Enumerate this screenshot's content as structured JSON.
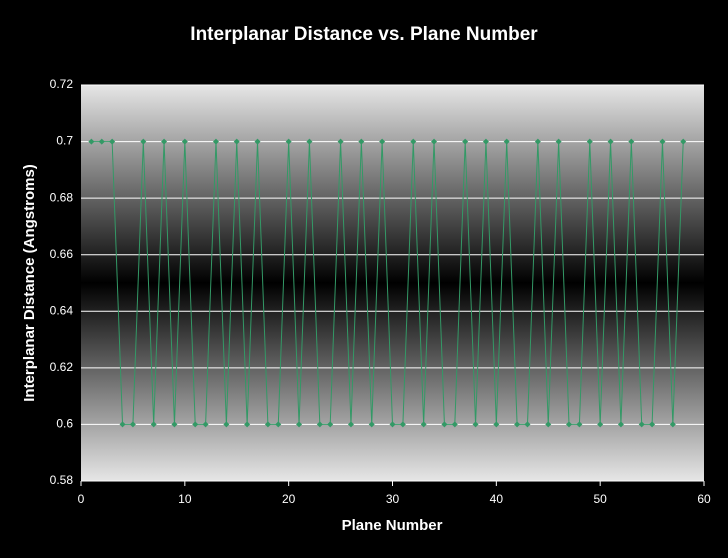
{
  "chart_data": {
    "type": "line",
    "title": "Interplanar Distance vs. Plane Number",
    "x_label": "Plane Number",
    "y_label": "Interplanar Distance (Angstroms)",
    "x": [
      1,
      2,
      3,
      4,
      5,
      6,
      7,
      8,
      9,
      10,
      11,
      12,
      13,
      14,
      15,
      16,
      17,
      18,
      19,
      20,
      21,
      22,
      23,
      24,
      25,
      26,
      27,
      28,
      29,
      30,
      31,
      32,
      33,
      34,
      35,
      36,
      37,
      38,
      39,
      40,
      41,
      42,
      43,
      44,
      45,
      46,
      47,
      48,
      49,
      50,
      51,
      52,
      53,
      54,
      55,
      56,
      57,
      58
    ],
    "series": [
      {
        "name": "Interplanar Distance",
        "color": "#339966",
        "values": [
          0.7,
          0.7,
          0.7,
          0.6,
          0.6,
          0.7,
          0.6,
          0.7,
          0.6,
          0.7,
          0.6,
          0.6,
          0.7,
          0.6,
          0.7,
          0.6,
          0.7,
          0.6,
          0.6,
          0.7,
          0.6,
          0.7,
          0.6,
          0.6,
          0.7,
          0.6,
          0.7,
          0.6,
          0.7,
          0.6,
          0.6,
          0.7,
          0.6,
          0.7,
          0.6,
          0.6,
          0.7,
          0.6,
          0.7,
          0.6,
          0.7,
          0.6,
          0.6,
          0.7,
          0.6,
          0.7,
          0.6,
          0.6,
          0.7,
          0.6,
          0.7,
          0.6,
          0.7,
          0.6,
          0.6,
          0.7,
          0.6,
          0.7
        ]
      }
    ],
    "xlim": [
      0,
      60
    ],
    "xticks": [
      0,
      10,
      20,
      30,
      40,
      50,
      60
    ],
    "ylim": [
      0.58,
      0.72
    ],
    "yticks": [
      0.58,
      0.6,
      0.62,
      0.64,
      0.66,
      0.68,
      0.7,
      0.72
    ],
    "grid": true
  }
}
